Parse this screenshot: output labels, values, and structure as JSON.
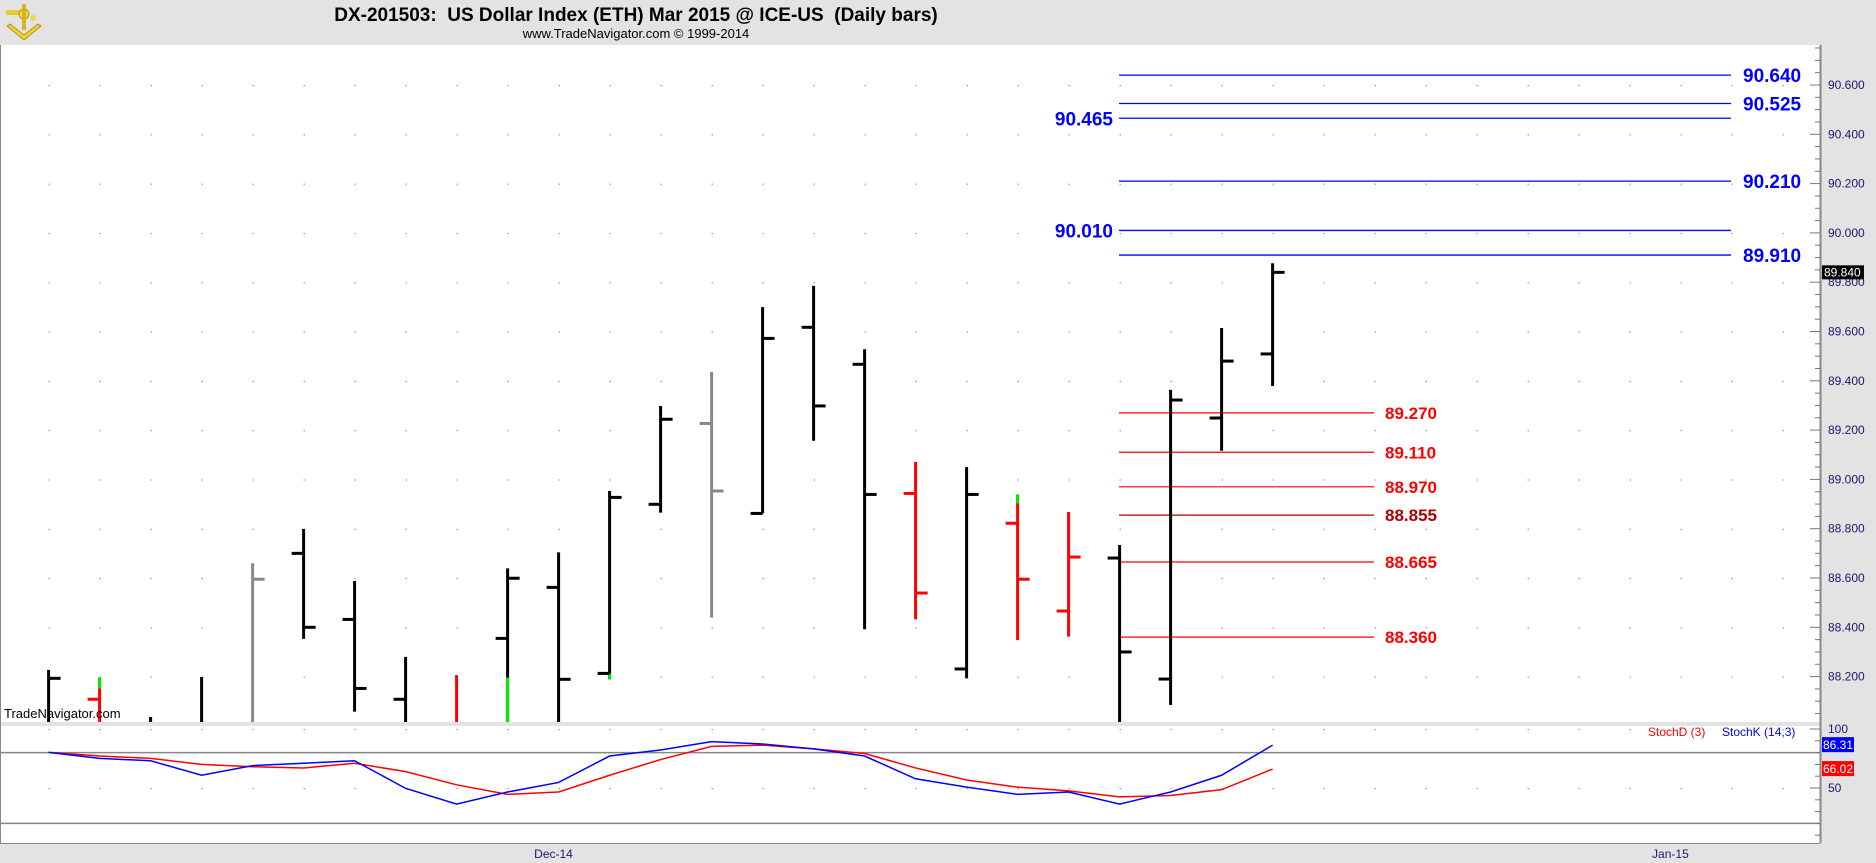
{
  "header": {
    "title": "DX-201503:  US Dollar Index (ETH) Mar 2015 @ ICE-US  (Daily bars)",
    "subtitle": "www.TradeNavigator.com © 1999-2014",
    "logo_icon": "sextant-icon"
  },
  "watermark": "TradeNavigator.com",
  "colors": {
    "bar_default": "#000000",
    "bar_gray": "#888888",
    "bar_red": "#ff0000",
    "bar_green": "#00ee00",
    "resistance": "#0000ff",
    "support": "#ff0000",
    "stoch_k": "#0000ff",
    "stoch_d": "#ff0000"
  },
  "chart_data": [
    {
      "type": "ohlc",
      "title": "DX-201503:  US Dollar Index (ETH) Mar 2015 @ ICE-US  (Daily bars)",
      "ylim": [
        88.02,
        90.76
      ],
      "y_ticks": [
        "88.200",
        "88.400",
        "88.600",
        "88.800",
        "89.000",
        "89.200",
        "89.400",
        "89.600",
        "89.800",
        "90.000",
        "90.200",
        "90.400",
        "90.600"
      ],
      "x_labels": [
        {
          "label": "Dec-14",
          "bar": 9.9
        },
        {
          "label": "Jan-15",
          "bar": 31.8
        }
      ],
      "last_price": "89.840",
      "grid": "dotted",
      "bars": [
        {
          "o": null,
          "h": 88.227,
          "l": null,
          "c": 88.193,
          "color": "black"
        },
        {
          "o": 88.108,
          "h": 88.196,
          "l": null,
          "c": null,
          "color": "red",
          "green": [
            88.196,
            88.152
          ]
        },
        {
          "o": null,
          "h": 88.036,
          "l": null,
          "c": null,
          "color": "black"
        },
        {
          "o": null,
          "h": 88.198,
          "l": null,
          "c": null,
          "color": "black"
        },
        {
          "o": null,
          "h": 88.66,
          "l": null,
          "c": 88.595,
          "color": "gray"
        },
        {
          "o": 88.7,
          "h": 88.799,
          "l": 88.353,
          "c": 88.4,
          "color": "black"
        },
        {
          "o": 88.432,
          "h": 88.588,
          "l": 88.058,
          "c": 88.152,
          "color": "black"
        },
        {
          "o": 88.108,
          "h": 88.28,
          "l": null,
          "c": null,
          "color": "black"
        },
        {
          "o": null,
          "h": 88.206,
          "l": null,
          "c": null,
          "color": "red"
        },
        {
          "o": 88.355,
          "h": 88.639,
          "l": null,
          "c": 88.599,
          "color": "black",
          "green": [
            88.196,
            null
          ]
        },
        {
          "o": 88.562,
          "h": 88.704,
          "l": null,
          "c": 88.189,
          "color": "black"
        },
        {
          "o": 88.213,
          "h": 88.953,
          "l": 88.189,
          "c": 88.927,
          "color": "black",
          "green": [
            88.213,
            88.189
          ]
        },
        {
          "o": 88.899,
          "h": 89.298,
          "l": 88.865,
          "c": 89.244,
          "color": "black"
        },
        {
          "o": 89.227,
          "h": 89.436,
          "l": 88.439,
          "c": 88.953,
          "color": "gray"
        },
        {
          "o": 88.862,
          "h": 89.699,
          "l": 88.862,
          "c": 89.572,
          "color": "black"
        },
        {
          "o": 89.617,
          "h": 89.785,
          "l": 89.157,
          "c": 89.298,
          "color": "black"
        },
        {
          "o": 89.467,
          "h": 89.528,
          "l": 88.392,
          "c": 88.939,
          "color": "black"
        },
        {
          "o": 88.943,
          "h": 89.071,
          "l": 88.432,
          "c": 88.539,
          "color": "red"
        },
        {
          "o": 88.231,
          "h": 89.05,
          "l": 88.193,
          "c": 88.939,
          "color": "black"
        },
        {
          "o": 88.822,
          "h": 88.939,
          "l": 88.348,
          "c": 88.595,
          "color": "red",
          "green": [
            88.939,
            88.903
          ]
        },
        {
          "o": 88.466,
          "h": 88.868,
          "l": 88.362,
          "c": 88.685,
          "color": "red"
        },
        {
          "o": 88.681,
          "h": 88.734,
          "l": null,
          "c": 88.3,
          "color": "black"
        },
        {
          "o": 88.19,
          "h": 89.363,
          "l": 88.085,
          "c": 89.322,
          "color": "black"
        },
        {
          "o": 89.249,
          "h": 89.614,
          "l": 89.116,
          "c": 89.48,
          "color": "black"
        },
        {
          "o": 89.509,
          "h": 89.877,
          "l": 89.379,
          "c": 89.84,
          "color": "black"
        }
      ],
      "levels_resistance": [
        {
          "value": 90.64,
          "label": "90.640",
          "label_side": "right"
        },
        {
          "value": 90.525,
          "label": "90.525",
          "label_side": "right"
        },
        {
          "value": 90.465,
          "label": "90.465",
          "label_side": "left"
        },
        {
          "value": 90.21,
          "label": "90.210",
          "label_side": "right"
        },
        {
          "value": 90.01,
          "label": "90.010",
          "label_side": "left"
        },
        {
          "value": 89.91,
          "label": "89.910",
          "label_side": "right"
        }
      ],
      "levels_support": [
        {
          "value": 89.27,
          "label": "89.270"
        },
        {
          "value": 89.11,
          "label": "89.110"
        },
        {
          "value": 88.97,
          "label": "88.970"
        },
        {
          "value": 88.855,
          "label": "88.855"
        },
        {
          "value": 88.665,
          "label": "88.665"
        },
        {
          "value": 88.36,
          "label": "88.360"
        }
      ]
    },
    {
      "type": "line",
      "ylim": [
        0,
        100
      ],
      "y_ticks": [
        "100",
        "50"
      ],
      "reference_lines": [
        80,
        20
      ],
      "legend": "top-right",
      "series": [
        {
          "name": "StochD (3)",
          "color": "#ff0000",
          "last": "66.02",
          "values": [
            80.2,
            77.1,
            75.1,
            70.0,
            68.0,
            67.0,
            71.0,
            63.9,
            52.7,
            44.6,
            46.6,
            60.8,
            74.1,
            85.3,
            86.3,
            83.2,
            79.2,
            67.0,
            56.8,
            50.7,
            47.6,
            42.5,
            43.6,
            48.6,
            66.02
          ]
        },
        {
          "name": "StochK (14,3)",
          "color": "#0000ff",
          "last": "86.31",
          "values": [
            80.2,
            75.1,
            73.1,
            60.8,
            69.0,
            71.0,
            73.1,
            49.7,
            36.4,
            46.6,
            54.7,
            77.1,
            82.2,
            89.3,
            87.3,
            83.2,
            77.1,
            57.8,
            50.7,
            44.6,
            46.6,
            36.4,
            46.6,
            60.8,
            86.31
          ]
        }
      ]
    }
  ]
}
